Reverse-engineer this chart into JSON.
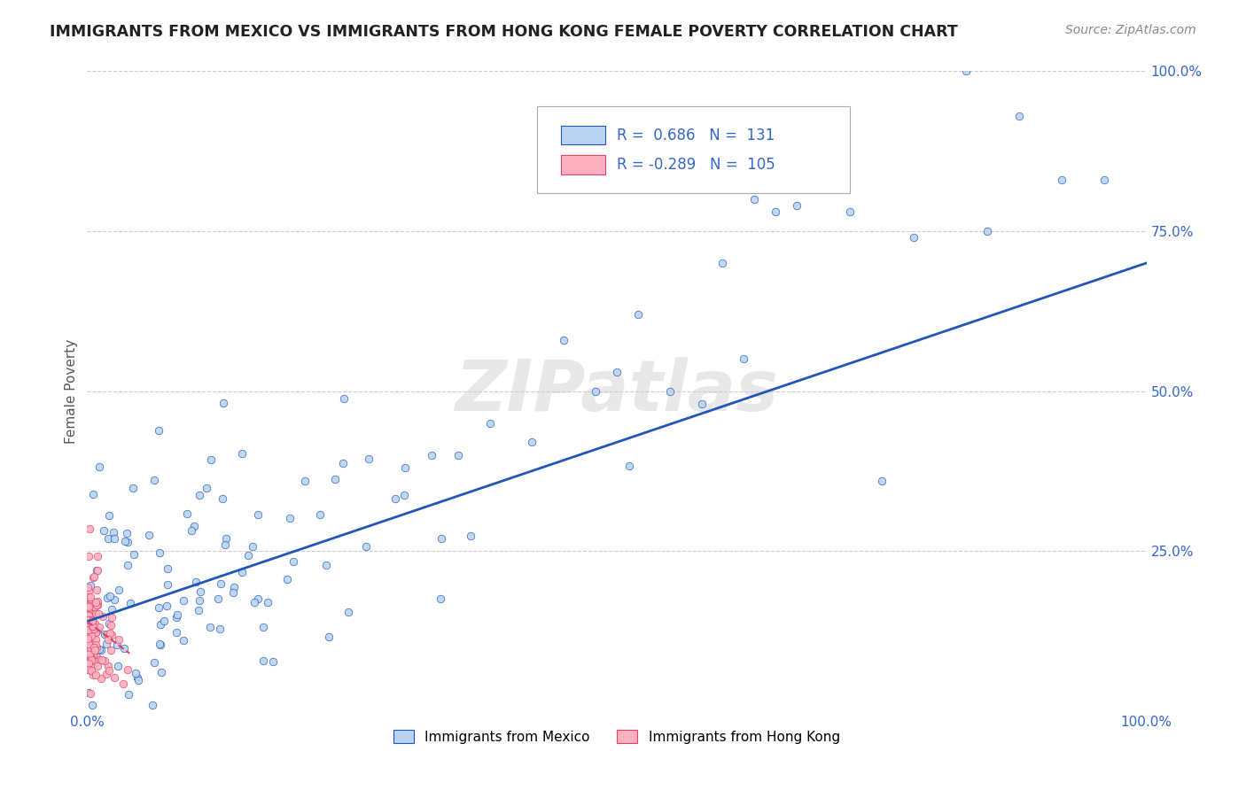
{
  "title": "IMMIGRANTS FROM MEXICO VS IMMIGRANTS FROM HONG KONG FEMALE POVERTY CORRELATION CHART",
  "source_text": "Source: ZipAtlas.com",
  "ylabel": "Female Poverty",
  "watermark": "ZIPatlas",
  "mexico_R": 0.686,
  "mexico_N": 131,
  "hk_R": -0.289,
  "hk_N": 105,
  "mexico_color": "#b8d4f0",
  "hk_color": "#ffb0c0",
  "trend_blue": "#2255bb",
  "trend_pink": "#dd4466",
  "xlim": [
    0,
    1
  ],
  "ylim": [
    0,
    1
  ],
  "legend_label_mexico": "Immigrants from Mexico",
  "legend_label_hk": "Immigrants from Hong Kong",
  "background_color": "#ffffff",
  "grid_color": "#cccccc",
  "title_color": "#222222",
  "label_color": "#3366cc",
  "seed": 12345
}
